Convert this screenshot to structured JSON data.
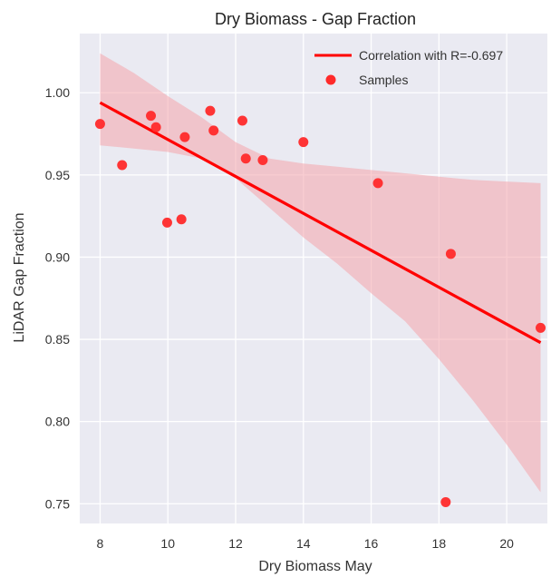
{
  "chart_data": {
    "type": "scatter",
    "title": "Dry Biomass - Gap Fraction",
    "xlabel": "Dry Biomass May",
    "ylabel": "LiDAR Gap Fraction",
    "xlim": [
      7.4,
      21.2
    ],
    "ylim": [
      0.738,
      1.036
    ],
    "xticks": [
      8,
      10,
      12,
      14,
      16,
      18,
      20
    ],
    "yticks": [
      0.75,
      0.8,
      0.85,
      0.9,
      0.95,
      1.0
    ],
    "ytick_labels": [
      "0.75",
      "0.80",
      "0.85",
      "0.90",
      "0.95",
      "1.00"
    ],
    "grid": true,
    "legend_position": "top-right",
    "colors": {
      "background": "#EAEAF2",
      "grid": "#FFFFFF",
      "accent": "#FF0000",
      "band": "#F4A4AC",
      "points": "#FF2A2A"
    },
    "series": [
      {
        "name": "Samples",
        "kind": "scatter",
        "x": [
          8.0,
          8.65,
          9.5,
          9.65,
          9.98,
          10.4,
          10.5,
          11.25,
          11.35,
          12.2,
          12.3,
          12.8,
          14.0,
          16.2,
          18.2,
          18.35,
          21.0
        ],
        "y": [
          0.981,
          0.956,
          0.986,
          0.979,
          0.921,
          0.923,
          0.973,
          0.989,
          0.977,
          0.983,
          0.96,
          0.959,
          0.97,
          0.945,
          0.751,
          0.902,
          0.857
        ]
      },
      {
        "name": "Correlation with R=-0.697",
        "kind": "line",
        "x": [
          8.0,
          21.0
        ],
        "y": [
          0.994,
          0.848
        ]
      }
    ],
    "confidence_band": {
      "x": [
        8.0,
        9.0,
        10.0,
        11.0,
        12.0,
        13.0,
        14.0,
        15.0,
        16.0,
        17.0,
        18.0,
        19.0,
        20.0,
        21.0
      ],
      "upper": [
        1.024,
        1.012,
        0.998,
        0.985,
        0.97,
        0.96,
        0.957,
        0.955,
        0.953,
        0.951,
        0.949,
        0.947,
        0.946,
        0.945
      ],
      "lower": [
        0.968,
        0.966,
        0.964,
        0.96,
        0.948,
        0.93,
        0.912,
        0.896,
        0.878,
        0.861,
        0.838,
        0.813,
        0.786,
        0.757
      ]
    }
  }
}
